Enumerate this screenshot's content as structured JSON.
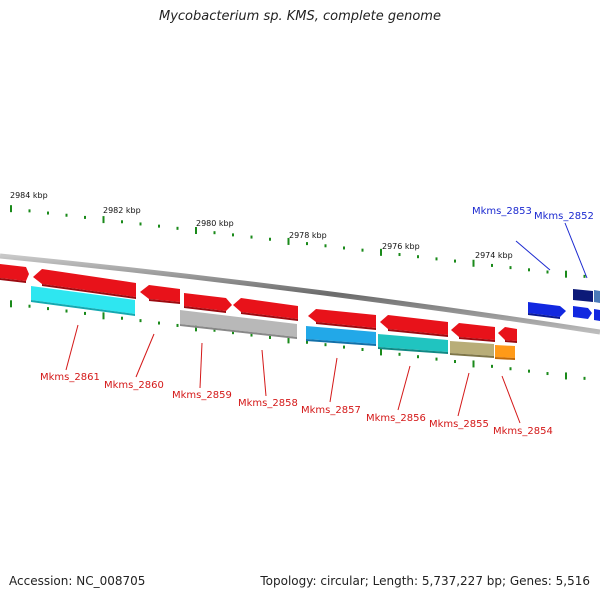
{
  "title": "Mycobacterium sp. KMS, complete genome",
  "footer": {
    "accession": "Accession: NC_008705",
    "summary": "Topology: circular; Length: 5,737,227 bp; Genes: 5,516"
  },
  "scale_labels": [
    "2984 kbp",
    "2982 kbp",
    "2980 kbp",
    "2978 kbp",
    "2976 kbp",
    "2974 kbp"
  ],
  "gene_labels": {
    "bottom": [
      "Mkms_2861",
      "Mkms_2860",
      "Mkms_2859",
      "Mkms_2858",
      "Mkms_2857",
      "Mkms_2856",
      "Mkms_2855",
      "Mkms_2854"
    ],
    "top": [
      "Mkms_2853",
      "Mkms_2852"
    ]
  },
  "colors": {
    "red": "#e8121a",
    "cyan": "#2ee6f0",
    "gray": "#b8b8b8",
    "sky": "#22a8e8",
    "teal": "#20c4c0",
    "khaki": "#b8ad78",
    "orange": "#ff9a18",
    "blue": "#1228e0",
    "navy": "#0c1a78",
    "label_red": "#d41818",
    "label_blue": "#1c2ad0"
  }
}
